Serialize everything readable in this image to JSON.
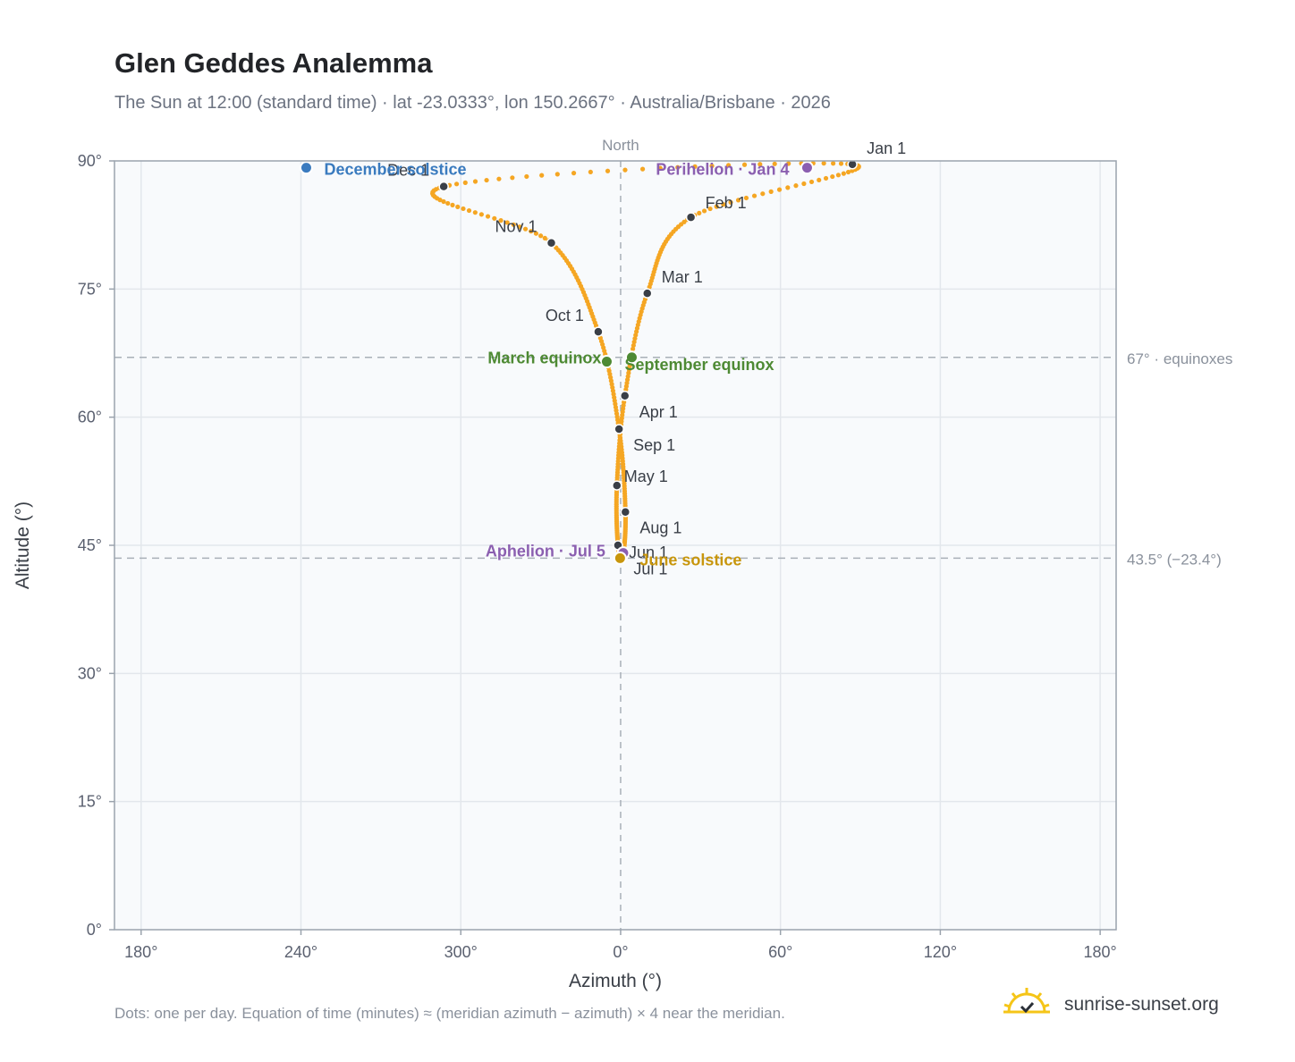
{
  "title": "Glen Geddes Analemma",
  "subtitle": "The Sun at 12:00 (standard time) · lat -23.0333°, lon 150.2667° · Australia/Brisbane · 2026",
  "footnote": "Dots: one per day. Equation of time (minutes) ≈ (meridian azimuth − azimuth) × 4 near the meridian.",
  "brand": {
    "text": "sunrise-sunset.org",
    "icon": "sun-logo-icon"
  },
  "colors": {
    "curve": "#f5a623",
    "month_dot": "#3a3f47",
    "december_solstice": "#3a7bbf",
    "june_solstice": "#c8960c",
    "equinox": "#4e8a34",
    "apsis": "#8b5fb0",
    "plot_bg": "#f8fafc",
    "grid": "#e3e7ec",
    "reference_line": "#a9b0b8"
  },
  "chart_data": {
    "type": "scatter",
    "title": "Glen Geddes Analemma",
    "xlabel": "Azimuth (°)",
    "ylabel": "Altitude (°)",
    "x_axis_note": "North",
    "xlim": [
      -95,
      93
    ],
    "ylim": [
      0,
      90
    ],
    "x_ticks": [
      {
        "value": -90,
        "label": "180°"
      },
      {
        "value": -60,
        "label": "240°"
      },
      {
        "value": -30,
        "label": "300°"
      },
      {
        "value": 0,
        "label": "0°"
      },
      {
        "value": 30,
        "label": "60°"
      },
      {
        "value": 60,
        "label": "120°"
      },
      {
        "value": 90,
        "label": "180°"
      }
    ],
    "y_ticks": [
      0,
      15,
      30,
      45,
      60,
      75,
      90
    ],
    "y_tick_suffix": "°",
    "grid": true,
    "reference_lines": [
      {
        "y": 67,
        "label": "67° · equinoxes"
      },
      {
        "y": 43.5,
        "label": "43.5° (−23.4°)"
      }
    ],
    "month_points": [
      {
        "label": "Jan 1",
        "azimuth": 43.5,
        "altitude": 89.6
      },
      {
        "label": "Feb 1",
        "azimuth": 13.2,
        "altitude": 83.4
      },
      {
        "label": "Mar 1",
        "azimuth": 5.0,
        "altitude": 74.5
      },
      {
        "label": "Apr 1",
        "azimuth": 0.8,
        "altitude": 62.5
      },
      {
        "label": "May 1",
        "azimuth": -0.7,
        "altitude": 52.0
      },
      {
        "label": "Jun 1",
        "azimuth": -0.5,
        "altitude": 45.0
      },
      {
        "label": "Jul 1",
        "azimuth": 0.4,
        "altitude": 43.7
      },
      {
        "label": "Aug 1",
        "azimuth": 0.9,
        "altitude": 48.9
      },
      {
        "label": "Sep 1",
        "azimuth": -0.3,
        "altitude": 58.6
      },
      {
        "label": "Oct 1",
        "azimuth": -4.2,
        "altitude": 70.0
      },
      {
        "label": "Nov 1",
        "azimuth": -13.0,
        "altitude": 80.4
      },
      {
        "label": "Dec 1",
        "azimuth": -33.2,
        "altitude": 87.0
      }
    ],
    "events": [
      {
        "label": "December solstice",
        "azimuth": -59.0,
        "altitude": 89.2,
        "kind": "december_solstice"
      },
      {
        "label": "Perihelion · Jan 4",
        "azimuth": 35.0,
        "altitude": 89.2,
        "kind": "apsis"
      },
      {
        "label": "March equinox",
        "azimuth": -2.6,
        "altitude": 66.5,
        "kind": "equinox"
      },
      {
        "label": "September equinox",
        "azimuth": 2.1,
        "altitude": 67.0,
        "kind": "equinox"
      },
      {
        "label": "Aphelion · Jul 5",
        "azimuth": 0.5,
        "altitude": 44.1,
        "kind": "apsis"
      },
      {
        "label": "June solstice",
        "azimuth": -0.1,
        "altitude": 43.5,
        "kind": "june_solstice"
      }
    ]
  }
}
